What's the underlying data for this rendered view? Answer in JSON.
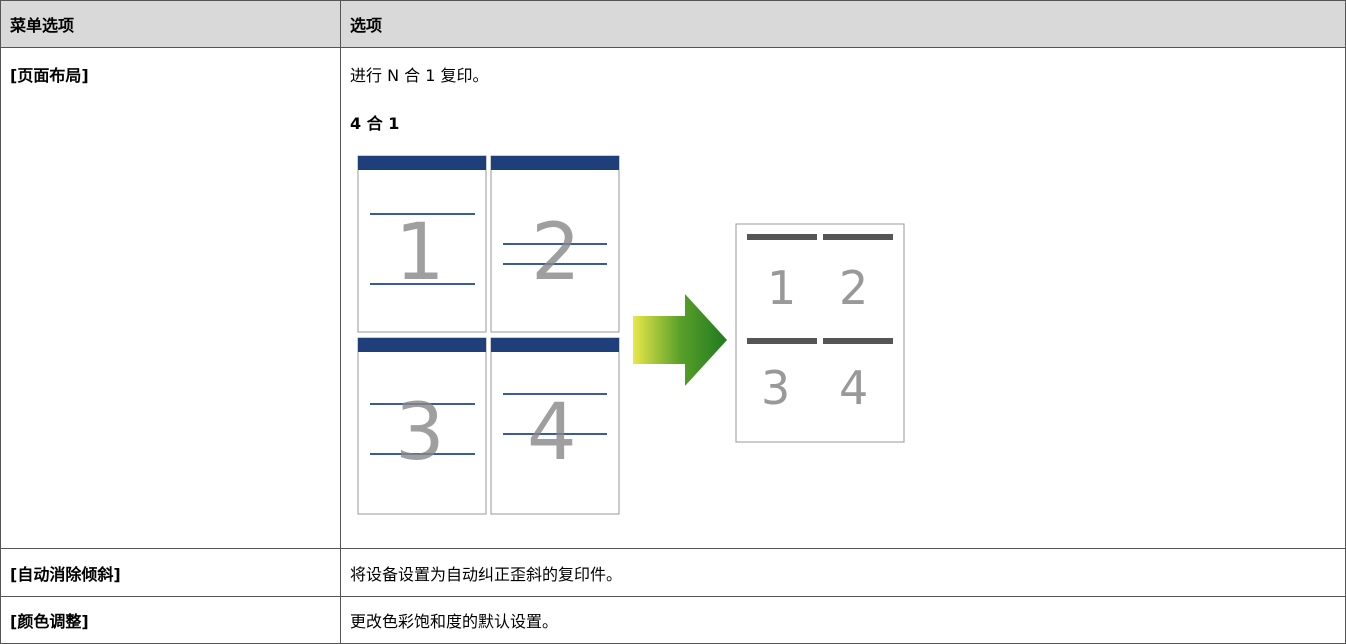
{
  "table": {
    "header": [
      "菜单选项",
      "选项"
    ],
    "rows": [
      {
        "option": "[页面布局]",
        "description": "进行 N 合 1 复印。",
        "subheading": "4 合 1"
      },
      {
        "option": "[自动消除倾斜]",
        "description": "将设备设置为自动纠正歪斜的复印件。"
      },
      {
        "option": "[颜色调整]",
        "description": "更改色彩饱和度的默认设置。"
      }
    ]
  }
}
